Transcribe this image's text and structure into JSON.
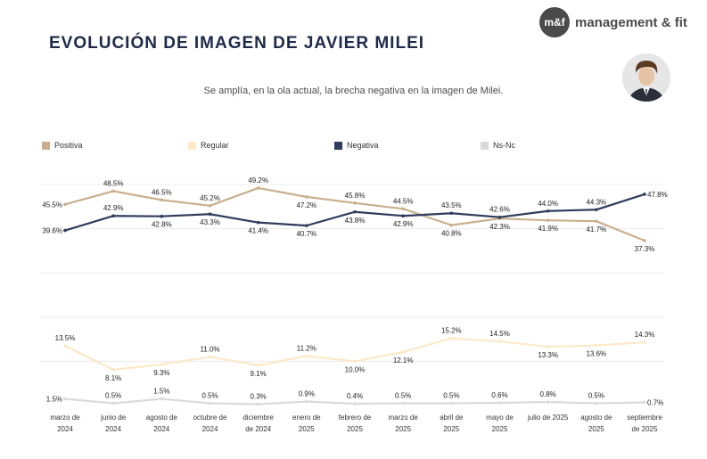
{
  "header": {
    "title": "EVOLUCIÓN DE IMAGEN DE JAVIER MILEI",
    "subtitle": "Se amplía, en la ola actual, la brecha negativa en la imagen de Milei.",
    "brand_mark": "m&f",
    "brand_name": "management & fit"
  },
  "colors": {
    "positiva": "#c8b08e",
    "regular": "#fbe9c8",
    "negativa": "#2e3d5c",
    "nsnc": "#dadada"
  },
  "chart_data": {
    "type": "line",
    "categories": [
      [
        "marzo de",
        "2024"
      ],
      [
        "junio de",
        "2024"
      ],
      [
        "agosto de",
        "2024"
      ],
      [
        "octubre de",
        "2024"
      ],
      [
        "diciembre",
        "de 2024"
      ],
      [
        "enero de",
        "2025"
      ],
      [
        "febrero de",
        "2025"
      ],
      [
        "marzo de",
        "2025"
      ],
      [
        "abril de",
        "2025"
      ],
      [
        "mayo de",
        "2025"
      ],
      [
        "julio de 2025",
        ""
      ],
      [
        "agosto de",
        "2025"
      ],
      [
        "septiembre",
        "de 2025"
      ]
    ],
    "series": [
      {
        "name": "Positiva",
        "color": "#c8b08e",
        "values": [
          45.5,
          48.5,
          46.5,
          45.2,
          49.2,
          47.2,
          45.8,
          44.5,
          40.8,
          42.3,
          41.9,
          41.7,
          37.3
        ],
        "labels": [
          "45.5%",
          "48.5%",
          "46.5%",
          "45.2%",
          "49.2%",
          "47.2%",
          "45.8%",
          "44.5%",
          "40.8%",
          "42.3%",
          "41.9%",
          "41.7%",
          "37.3%"
        ],
        "label_pos": [
          "l",
          "a",
          "a",
          "a",
          "a",
          "b",
          "a",
          "a",
          "b",
          "b",
          "b",
          "b",
          "b"
        ]
      },
      {
        "name": "Regular",
        "color": "#fbe9c8",
        "values": [
          13.5,
          8.1,
          9.3,
          11.0,
          9.1,
          11.2,
          10.0,
          12.1,
          15.2,
          14.5,
          13.3,
          13.6,
          14.3
        ],
        "labels": [
          "13.5%",
          "8.1%",
          "9.3%",
          "11.0%",
          "9.1%",
          "11.2%",
          "10.0%",
          "12.1%",
          "15.2%",
          "14.5%",
          "13.3%",
          "13.6%",
          "14.3%"
        ],
        "label_pos": [
          "a",
          "b",
          "b",
          "a",
          "b",
          "a",
          "b",
          "b",
          "a",
          "a",
          "b",
          "b",
          "a"
        ]
      },
      {
        "name": "Negativa",
        "color": "#2e3d5c",
        "values": [
          39.6,
          42.9,
          42.8,
          43.3,
          41.4,
          40.7,
          43.8,
          42.9,
          43.5,
          42.6,
          44.0,
          44.3,
          47.8
        ],
        "labels": [
          "39.6%",
          "42.9%",
          "42.8%",
          "43.3%",
          "41.4%",
          "40.7%",
          "43.8%",
          "42.9%",
          "43.5%",
          "42.6%",
          "44.0%",
          "44.3%",
          "47.8%"
        ],
        "label_pos": [
          "l",
          "a",
          "b",
          "b",
          "b",
          "b",
          "b",
          "b",
          "a",
          "a",
          "a",
          "a",
          "r"
        ]
      },
      {
        "name": "Ns-Nc",
        "color": "#dadada",
        "values": [
          1.5,
          0.5,
          1.5,
          0.5,
          0.3,
          0.9,
          0.4,
          0.5,
          0.5,
          0.6,
          0.8,
          0.5,
          0.7
        ],
        "labels": [
          "1.5%",
          "0.5%",
          "1.5%",
          "0.5%",
          "0.3%",
          "0.9%",
          "0.4%",
          "0.5%",
          "0.5%",
          "0.6%",
          "0.8%",
          "0.5%",
          "0.7%"
        ],
        "label_pos": [
          "l",
          "a",
          "a",
          "a",
          "a",
          "a",
          "a",
          "a",
          "a",
          "a",
          "a",
          "a",
          "r"
        ]
      }
    ],
    "legend_placement": "top",
    "grid": true,
    "ylim": [
      0,
      50
    ]
  }
}
